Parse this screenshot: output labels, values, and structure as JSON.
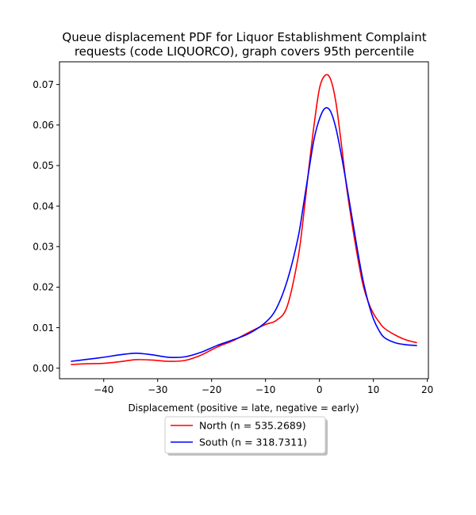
{
  "chart_data": {
    "type": "line",
    "title_lines": [
      "Queue displacement PDF for Liquor Establishment Complaint",
      "requests (code LIQUORCO), graph covers 95th percentile"
    ],
    "xlabel": "Displacement (positive = late, negative = early)",
    "ylabel": "",
    "xlim": [
      -48.2,
      20.2
    ],
    "ylim": [
      -0.0026,
      0.0756
    ],
    "xticks": [
      -40,
      -30,
      -20,
      -10,
      0,
      10,
      20
    ],
    "xtick_labels": [
      "−40",
      "−30",
      "−20",
      "−10",
      "0",
      "10",
      "20"
    ],
    "yticks": [
      0.0,
      0.01,
      0.02,
      0.03,
      0.04,
      0.05,
      0.06,
      0.07
    ],
    "ytick_labels": [
      "0.00",
      "0.01",
      "0.02",
      "0.03",
      "0.04",
      "0.05",
      "0.06",
      "0.07"
    ],
    "grid": false,
    "legend_position": "below plot, centered",
    "series": [
      {
        "name": "North (n = 535.2689)",
        "color": "#ff0000",
        "x": [
          -46,
          -43,
          -40,
          -37,
          -34,
          -31,
          -28,
          -25,
          -22,
          -19,
          -16,
          -13,
          -10,
          -8,
          -6,
          -4,
          -3,
          -2,
          -1,
          0,
          1,
          2,
          3,
          4,
          5,
          6,
          7,
          8,
          9,
          10,
          11,
          12,
          14,
          16,
          18
        ],
        "y": [
          0.0009,
          0.0011,
          0.0012,
          0.0016,
          0.0021,
          0.002,
          0.0017,
          0.0019,
          0.0032,
          0.0052,
          0.0068,
          0.0089,
          0.0108,
          0.0118,
          0.0152,
          0.027,
          0.037,
          0.049,
          0.06,
          0.069,
          0.0722,
          0.0715,
          0.066,
          0.056,
          0.045,
          0.036,
          0.028,
          0.021,
          0.0165,
          0.0135,
          0.0115,
          0.0099,
          0.0082,
          0.007,
          0.0063
        ]
      },
      {
        "name": "South (n = 318.7311)",
        "color": "#0000ff",
        "x": [
          -46,
          -43,
          -40,
          -37,
          -34,
          -31,
          -28,
          -25,
          -22,
          -19,
          -16,
          -13,
          -10,
          -8,
          -6,
          -4,
          -3,
          -2,
          -1,
          0,
          1,
          2,
          3,
          4,
          5,
          6,
          7,
          8,
          9,
          10,
          11,
          12,
          14,
          16,
          18
        ],
        "y": [
          0.0017,
          0.0022,
          0.0027,
          0.0033,
          0.0037,
          0.0033,
          0.0027,
          0.0028,
          0.0039,
          0.0056,
          0.007,
          0.0086,
          0.0113,
          0.0147,
          0.0215,
          0.032,
          0.04,
          0.0485,
          0.0565,
          0.0615,
          0.0641,
          0.0635,
          0.0595,
          0.053,
          0.0455,
          0.0375,
          0.0295,
          0.0222,
          0.0165,
          0.0122,
          0.0094,
          0.0076,
          0.0063,
          0.0058,
          0.0056
        ]
      }
    ]
  }
}
